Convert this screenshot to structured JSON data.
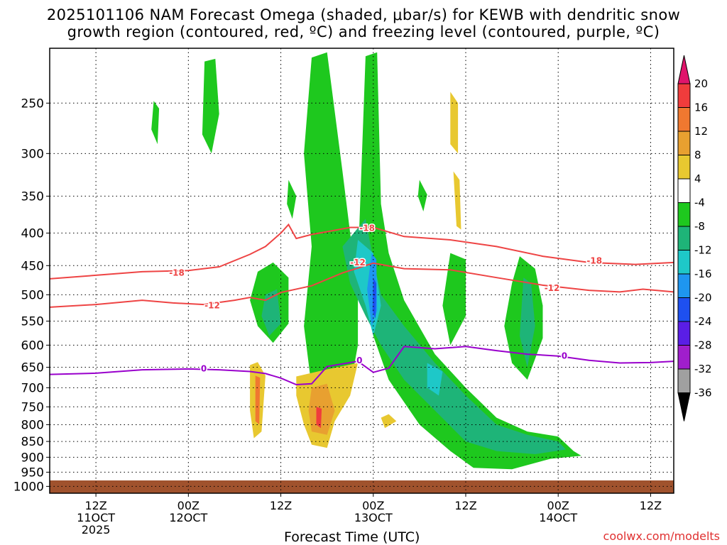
{
  "title_line1": "2025101106 NAM Forecast Omega (shaded, μbar/s) for KEWB with dendritic snow",
  "title_line2": "growth region (contoured, red, ºC) and freezing level (contoured, purple, ºC)",
  "x_axis_title": "Forecast Time (UTC)",
  "credit": "coolwx.com/modelts",
  "chart_data": {
    "type": "heatmap",
    "title": "2025101106 NAM Forecast Omega (shaded, μbar/s) for KEWB with dendritic snow growth region (contoured, red, ºC) and freezing level (contoured, purple, ºC)",
    "xlabel": "Forecast Time (UTC)",
    "ylabel": "",
    "y_scale": "log",
    "ylim": [
      1025,
      205
    ],
    "y_ticks": [
      250,
      300,
      350,
      400,
      450,
      500,
      550,
      600,
      650,
      700,
      750,
      800,
      850,
      900,
      950,
      1000
    ],
    "x_range_hours": [
      -6,
      75
    ],
    "x_ticks": [
      {
        "hour": 0,
        "lines": [
          "12Z",
          "11OCT",
          "2025"
        ]
      },
      {
        "hour": 12,
        "lines": [
          "00Z",
          "12OCT"
        ]
      },
      {
        "hour": 24,
        "lines": [
          "12Z"
        ]
      },
      {
        "hour": 36,
        "lines": [
          "00Z",
          "13OCT"
        ]
      },
      {
        "hour": 48,
        "lines": [
          "12Z"
        ]
      },
      {
        "hour": 60,
        "lines": [
          "00Z",
          "14OCT"
        ]
      },
      {
        "hour": 72,
        "lines": [
          "12Z"
        ]
      }
    ],
    "grid": "dotted",
    "colorbar": {
      "labels": [
        "20",
        "16",
        "12",
        "8",
        "4",
        "-4",
        "-8",
        "-12",
        "-16",
        "-20",
        "-24",
        "-28",
        "-32",
        "-36"
      ],
      "colors": [
        "#e0156b",
        "#f03c3c",
        "#f07830",
        "#e8a030",
        "#e8c830",
        "#ffffff",
        "#1ec81e",
        "#1eb478",
        "#1ec8c8",
        "#1e96f0",
        "#1e50f0",
        "#5a1ee6",
        "#a01ecc",
        "#a0a0a0",
        "#000000"
      ]
    },
    "series": [
      {
        "name": "-18",
        "color": "#ee4444",
        "points": [
          [
            -6,
            472
          ],
          [
            0,
            466
          ],
          [
            6,
            460
          ],
          [
            12,
            458
          ],
          [
            16,
            452
          ],
          [
            20,
            432
          ],
          [
            22,
            420
          ],
          [
            24,
            400
          ],
          [
            25,
            388
          ],
          [
            26,
            408
          ],
          [
            28,
            402
          ],
          [
            30,
            398
          ],
          [
            33,
            392
          ],
          [
            36,
            392
          ],
          [
            40,
            405
          ],
          [
            46,
            410
          ],
          [
            52,
            420
          ],
          [
            58,
            435
          ],
          [
            64,
            445
          ],
          [
            70,
            448
          ],
          [
            75,
            445
          ]
        ]
      },
      {
        "name": "-12",
        "color": "#ee4444",
        "points": [
          [
            -6,
            523
          ],
          [
            0,
            518
          ],
          [
            6,
            510
          ],
          [
            10,
            515
          ],
          [
            14,
            518
          ],
          [
            18,
            510
          ],
          [
            20,
            505
          ],
          [
            22,
            510
          ],
          [
            24,
            496
          ],
          [
            28,
            484
          ],
          [
            32,
            462
          ],
          [
            36,
            446
          ],
          [
            40,
            455
          ],
          [
            46,
            457
          ],
          [
            52,
            470
          ],
          [
            58,
            483
          ],
          [
            64,
            492
          ],
          [
            68,
            495
          ],
          [
            71,
            490
          ],
          [
            75,
            495
          ]
        ]
      },
      {
        "name": "0",
        "color": "#9900cc",
        "points": [
          [
            -6,
            667
          ],
          [
            0,
            664
          ],
          [
            6,
            656
          ],
          [
            12,
            654
          ],
          [
            16,
            656
          ],
          [
            20,
            660
          ],
          [
            22,
            665
          ],
          [
            24,
            676
          ],
          [
            26,
            692
          ],
          [
            28,
            690
          ],
          [
            30,
            648
          ],
          [
            34,
            636
          ],
          [
            36,
            662
          ],
          [
            38,
            652
          ],
          [
            40,
            603
          ],
          [
            44,
            608
          ],
          [
            48,
            603
          ],
          [
            52,
            612
          ],
          [
            56,
            620
          ],
          [
            60,
            624
          ],
          [
            64,
            634
          ],
          [
            68,
            640
          ],
          [
            72,
            639
          ],
          [
            75,
            636
          ]
        ]
      }
    ],
    "contour_labels": [
      {
        "text": "-18",
        "x": 10.5,
        "y": 462
      },
      {
        "text": "-18",
        "x": 35.2,
        "y": 393
      },
      {
        "text": "-18",
        "x": 64.7,
        "y": 442
      },
      {
        "text": "-12",
        "x": 15.1,
        "y": 520
      },
      {
        "text": "-12",
        "x": 34.0,
        "y": 445
      },
      {
        "text": "-12",
        "x": 59.2,
        "y": 488
      },
      {
        "text": "0",
        "x": 14.0,
        "y": 653
      },
      {
        "text": "0",
        "x": 34.2,
        "y": 634
      },
      {
        "text": "0",
        "x": 60.8,
        "y": 624
      }
    ],
    "omega_regions": [
      {
        "value": -6,
        "color": "#1ec81e",
        "pts": [
          [
            35,
            211
          ],
          [
            36.5,
            208
          ],
          [
            37,
            360
          ],
          [
            38,
            430
          ],
          [
            40,
            510
          ],
          [
            44,
            620
          ],
          [
            48,
            700
          ],
          [
            52,
            780
          ],
          [
            56,
            820
          ],
          [
            60,
            835
          ],
          [
            62,
            880
          ],
          [
            63,
            895
          ],
          [
            59,
            905
          ],
          [
            54,
            940
          ],
          [
            49,
            935
          ],
          [
            46,
            880
          ],
          [
            42,
            800
          ],
          [
            38,
            680
          ],
          [
            36,
            580
          ],
          [
            34,
            450
          ]
        ]
      },
      {
        "value": -6,
        "color": "#1ec81e",
        "pts": [
          [
            28,
            212
          ],
          [
            30,
            208
          ],
          [
            32,
            320
          ],
          [
            33,
            400
          ],
          [
            34,
            500
          ],
          [
            34,
            600
          ],
          [
            33,
            700
          ],
          [
            31,
            790
          ],
          [
            28,
            700
          ],
          [
            27,
            560
          ],
          [
            28,
            420
          ],
          [
            27,
            300
          ]
        ]
      },
      {
        "value": -6,
        "color": "#1ec81e",
        "pts": [
          [
            21,
            460
          ],
          [
            23,
            445
          ],
          [
            25,
            470
          ],
          [
            25,
            555
          ],
          [
            23,
            595
          ],
          [
            21,
            560
          ],
          [
            20,
            510
          ]
        ]
      },
      {
        "value": -6,
        "color": "#1ec81e",
        "pts": [
          [
            46,
            430
          ],
          [
            48,
            440
          ],
          [
            48,
            540
          ],
          [
            46,
            600
          ],
          [
            45,
            520
          ]
        ]
      },
      {
        "value": -6,
        "color": "#1ec81e",
        "pts": [
          [
            55,
            435
          ],
          [
            57,
            455
          ],
          [
            58,
            520
          ],
          [
            58,
            585
          ],
          [
            56,
            680
          ],
          [
            54,
            640
          ],
          [
            53,
            560
          ],
          [
            54,
            480
          ]
        ]
      },
      {
        "value": -6,
        "color": "#1ec81e",
        "pts": [
          [
            14.1,
            215
          ],
          [
            15.5,
            213
          ],
          [
            16,
            260
          ],
          [
            15,
            300
          ],
          [
            13.8,
            280
          ]
        ]
      },
      {
        "value": -6,
        "color": "#1ec81e",
        "pts": [
          [
            25,
            330
          ],
          [
            26,
            350
          ],
          [
            25.5,
            380
          ],
          [
            24.8,
            360
          ]
        ]
      },
      {
        "value": -6,
        "color": "#1ec81e",
        "pts": [
          [
            42,
            330
          ],
          [
            43,
            348
          ],
          [
            42.5,
            370
          ],
          [
            41.8,
            350
          ]
        ]
      },
      {
        "value": -6,
        "color": "#1ec81e",
        "pts": [
          [
            7.5,
            248
          ],
          [
            8.2,
            255
          ],
          [
            8,
            290
          ],
          [
            7.2,
            275
          ]
        ]
      },
      {
        "value": -10,
        "color": "#1eb478",
        "pts": [
          [
            32,
            420
          ],
          [
            35,
            380
          ],
          [
            36,
            440
          ],
          [
            37,
            500
          ],
          [
            40,
            560
          ],
          [
            44,
            640
          ],
          [
            48,
            720
          ],
          [
            52,
            800
          ],
          [
            56,
            830
          ],
          [
            60,
            850
          ],
          [
            61,
            875
          ],
          [
            57,
            890
          ],
          [
            52,
            880
          ],
          [
            48,
            850
          ],
          [
            44,
            760
          ],
          [
            40,
            680
          ],
          [
            37,
            600
          ],
          [
            35,
            540
          ],
          [
            33,
            480
          ]
        ]
      },
      {
        "value": -10,
        "color": "#1eb478",
        "pts": [
          [
            22,
            500
          ],
          [
            23.5,
            490
          ],
          [
            24,
            555
          ],
          [
            22.5,
            580
          ],
          [
            21.5,
            540
          ]
        ]
      },
      {
        "value": -10,
        "color": "#1eb478",
        "pts": [
          [
            55.5,
            470
          ],
          [
            56.5,
            480
          ],
          [
            57,
            560
          ],
          [
            56,
            650
          ],
          [
            55,
            580
          ]
        ]
      },
      {
        "value": -14,
        "color": "#1ec8c8",
        "pts": [
          [
            34,
            410
          ],
          [
            36,
            430
          ],
          [
            37,
            520
          ],
          [
            36,
            580
          ],
          [
            35,
            520
          ],
          [
            33.5,
            460
          ]
        ]
      },
      {
        "value": -14,
        "color": "#1ec8c8",
        "pts": [
          [
            43,
            640
          ],
          [
            45,
            660
          ],
          [
            44.5,
            720
          ],
          [
            43,
            700
          ]
        ]
      },
      {
        "value": -18,
        "color": "#1e96f0",
        "pts": [
          [
            35.8,
            430
          ],
          [
            36.4,
            440
          ],
          [
            36.5,
            530
          ],
          [
            35.8,
            560
          ],
          [
            35.2,
            490
          ]
        ]
      },
      {
        "value": -22,
        "color": "#1e50f0",
        "pts": [
          [
            36,
            470
          ],
          [
            36.4,
            480
          ],
          [
            36.3,
            545
          ],
          [
            35.9,
            530
          ]
        ]
      },
      {
        "value": 6,
        "color": "#e8c830",
        "pts": [
          [
            20,
            645
          ],
          [
            21,
            638
          ],
          [
            22,
            670
          ],
          [
            21.5,
            820
          ],
          [
            20.5,
            840
          ],
          [
            20,
            760
          ]
        ]
      },
      {
        "value": 6,
        "color": "#e8c830",
        "pts": [
          [
            26,
            672
          ],
          [
            30,
            655
          ],
          [
            34,
            640
          ],
          [
            33,
            720
          ],
          [
            31,
            790
          ],
          [
            30,
            870
          ],
          [
            28,
            860
          ],
          [
            27,
            800
          ],
          [
            26,
            720
          ]
        ]
      },
      {
        "value": 6,
        "color": "#e8c830",
        "pts": [
          [
            37,
            780
          ],
          [
            38,
            770
          ],
          [
            39,
            790
          ],
          [
            37.5,
            810
          ]
        ]
      },
      {
        "value": 6,
        "color": "#e8c830",
        "pts": [
          [
            46,
            240
          ],
          [
            47,
            250
          ],
          [
            47,
            300
          ],
          [
            46,
            290
          ]
        ]
      },
      {
        "value": 6,
        "color": "#e8c830",
        "pts": [
          [
            46.4,
            320
          ],
          [
            47.2,
            330
          ],
          [
            47.4,
            395
          ],
          [
            46.8,
            390
          ]
        ]
      },
      {
        "value": 10,
        "color": "#e8a030",
        "pts": [
          [
            28,
            700
          ],
          [
            30,
            690
          ],
          [
            31,
            760
          ],
          [
            30,
            830
          ],
          [
            28,
            820
          ],
          [
            27.6,
            760
          ]
        ]
      },
      {
        "value": 14,
        "color": "#f07830",
        "pts": [
          [
            20.7,
            670
          ],
          [
            21.3,
            675
          ],
          [
            21.2,
            800
          ],
          [
            20.7,
            790
          ]
        ]
      },
      {
        "value": 18,
        "color": "#f03c3c",
        "pts": [
          [
            28.6,
            750
          ],
          [
            29.3,
            755
          ],
          [
            29.2,
            810
          ],
          [
            28.6,
            800
          ]
        ]
      }
    ]
  }
}
